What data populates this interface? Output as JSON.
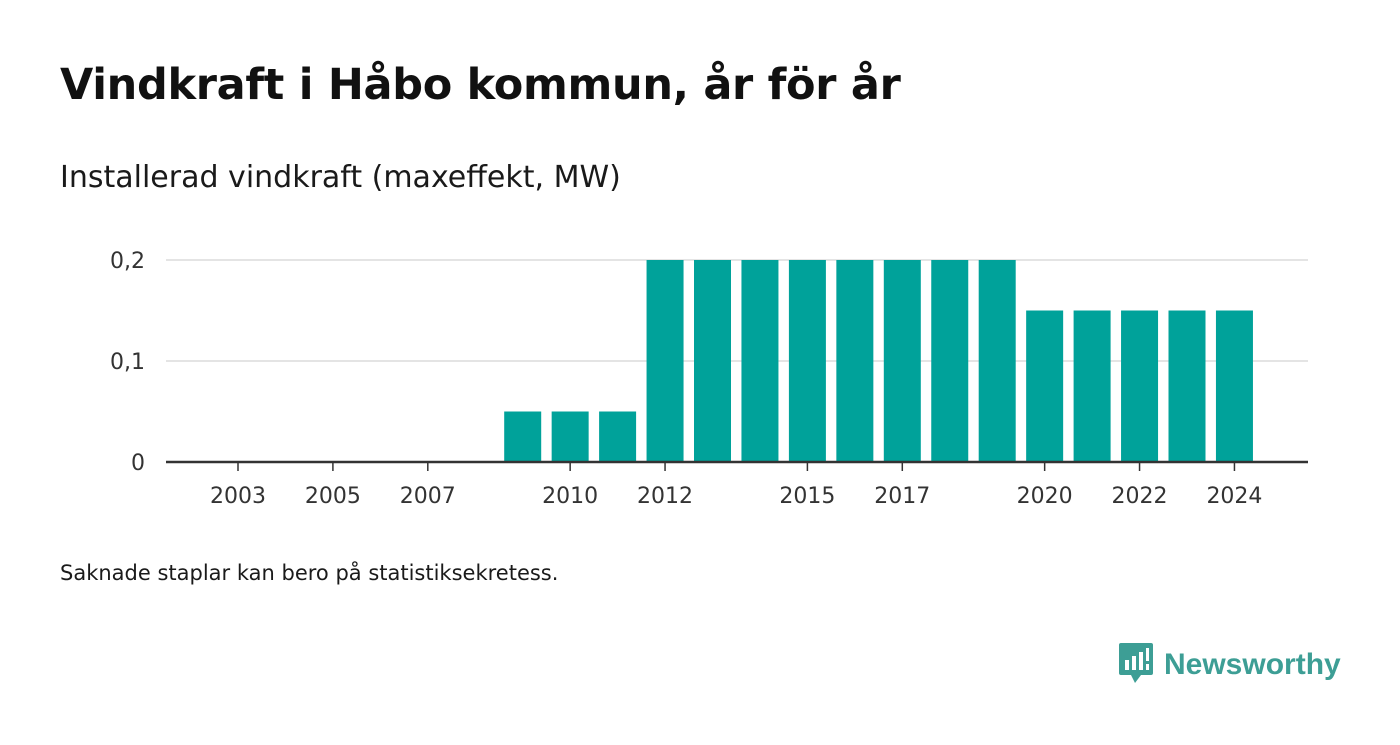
{
  "title": "Vindkraft i Håbo kommun, år för år",
  "subtitle": "Installerad vindkraft (maxeffekt, MW)",
  "note": "Saknade staplar kan bero på statistiksekretess.",
  "brand": {
    "name": "Newsworthy",
    "icon": "newsworthy-logo-icon",
    "color": "#3d9e95"
  },
  "colors": {
    "bar": "#00a29a",
    "grid": "#dcdcdc",
    "axis": "#333333"
  },
  "chart_data": {
    "type": "bar",
    "categories": [
      "2003",
      "2004",
      "2005",
      "2006",
      "2007",
      "2008",
      "2009",
      "2010",
      "2011",
      "2012",
      "2013",
      "2014",
      "2015",
      "2016",
      "2017",
      "2018",
      "2019",
      "2020",
      "2021",
      "2022",
      "2023",
      "2024"
    ],
    "values": [
      null,
      null,
      null,
      null,
      null,
      null,
      0.05,
      0.05,
      0.05,
      0.2,
      0.2,
      0.2,
      0.2,
      0.2,
      0.2,
      0.2,
      0.2,
      0.15,
      0.15,
      0.15,
      0.15,
      0.15
    ],
    "x_tick_labels": [
      "2003",
      "2005",
      "2007",
      "2010",
      "2012",
      "2015",
      "2017",
      "2020",
      "2022",
      "2024"
    ],
    "y_ticks": [
      {
        "value": 0,
        "label": "0"
      },
      {
        "value": 0.1,
        "label": "0,1"
      },
      {
        "value": 0.2,
        "label": "0,2"
      }
    ],
    "ylim": [
      0,
      0.2
    ],
    "grid": true,
    "title": "Vindkraft i Håbo kommun, år för år",
    "xlabel": "",
    "ylabel": "Installerad vindkraft (maxeffekt, MW)"
  }
}
